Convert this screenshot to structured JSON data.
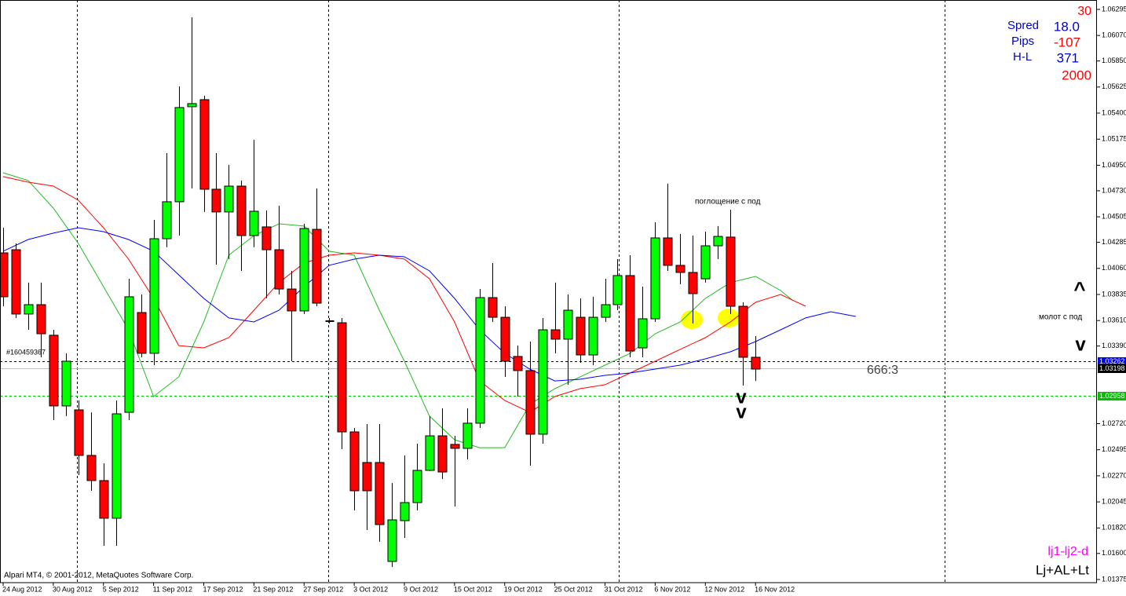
{
  "chart_data": {
    "type": "candlestick",
    "open": [
      1.04194,
      1.04221,
      1.03666,
      1.03747,
      1.03483,
      1.02873,
      1.02839,
      1.02446,
      1.02229,
      1.01904,
      1.02818,
      1.03679,
      1.03327,
      1.04316,
      1.04635,
      1.05455,
      1.05516,
      1.04743,
      1.04547,
      1.0477,
      1.04343,
      1.04418,
      1.04221,
      1.03882,
      1.03693,
      1.04397,
      1.03605,
      1.03591,
      1.02649,
      1.02385,
      1.02385,
      1.01531,
      1.01883,
      1.02039,
      1.02317,
      1.02615,
      1.02541,
      1.02507,
      1.02724,
      1.03808,
      1.03638,
      1.033,
      1.03178,
      1.02629,
      1.0353,
      1.03449,
      1.03638,
      1.03313,
      1.03638,
      1.03747,
      1.03998,
      1.03374,
      1.03625,
      1.04323,
      1.04086,
      1.04025,
      1.0397,
      1.04255,
      1.0433,
      1.03733,
      1.03293
    ],
    "high": [
      1.04411,
      1.04275,
      1.03937,
      1.03937,
      1.0353,
      1.03327,
      1.0292,
      1.02818,
      1.02378,
      1.0292,
      1.0397,
      1.03835,
      1.04479,
      1.05055,
      1.05631,
      1.06227,
      1.0555,
      1.05055,
      1.04953,
      1.04818,
      1.0517,
      1.0456,
      1.04601,
      1.04038,
      1.04445,
      1.0475,
      1.03632,
      1.03632,
      1.02683,
      1.02717,
      1.02717,
      1.02208,
      1.02446,
      1.02547,
      1.02785,
      1.02852,
      1.02615,
      1.02852,
      1.03882,
      1.04106,
      1.03733,
      1.03394,
      1.03428,
      1.03632,
      1.03937,
      1.03835,
      1.03801,
      1.03815,
      1.0397,
      1.0414,
      1.04174,
      1.03903,
      1.04458,
      1.04791,
      1.04357,
      1.04343,
      1.04377,
      1.04425,
      1.04567,
      1.03767,
      1.03476
    ],
    "low": [
      1.03733,
      1.03632,
      1.0353,
      1.03293,
      1.02751,
      1.02785,
      1.02276,
      1.02141,
      1.01666,
      1.01666,
      1.02751,
      1.03293,
      1.03225,
      1.04242,
      1.04343,
      1.0475,
      1.04547,
      1.04092,
      1.0414,
      1.04038,
      1.04242,
      1.03801,
      1.03835,
      1.03259,
      1.03666,
      1.03733,
      1.03584,
      1.025,
      1.01971,
      1.01802,
      1.017,
      1.01483,
      1.01734,
      1.01971,
      1.0231,
      1.02242,
      1.02005,
      1.02412,
      1.02683,
      1.03598,
      1.03123,
      1.02954,
      1.02358,
      1.02547,
      1.03327,
      1.03056,
      1.03245,
      1.03225,
      1.03598,
      1.03699,
      1.03293,
      1.03293,
      1.03598,
      1.04038,
      1.03923,
      1.03584,
      1.03937,
      1.0414,
      1.03666,
      1.03049,
      1.03089
    ],
    "close": [
      1.03815,
      1.03666,
      1.03747,
      1.03496,
      1.02873,
      1.03259,
      1.02446,
      1.02229,
      1.01904,
      1.02805,
      1.03815,
      1.03327,
      1.04316,
      1.04635,
      1.05448,
      1.05482,
      1.04743,
      1.04547,
      1.0477,
      1.04343,
      1.04553,
      1.04221,
      1.03882,
      1.03693,
      1.04404,
      1.0376,
      1.03605,
      1.02649,
      1.02141,
      1.02141,
      1.01849,
      1.0189,
      1.02039,
      1.02317,
      1.02615,
      1.02303,
      1.02507,
      1.02724,
      1.03808,
      1.03638,
      1.03259,
      1.03178,
      1.02629,
      1.0353,
      1.03449,
      1.03699,
      1.03313,
      1.03638,
      1.03747,
      1.03998,
      1.03347,
      1.03625,
      1.04323,
      1.04086,
      1.04025,
      1.03842,
      1.04255,
      1.04336,
      1.03733,
      1.03293,
      1.03191
    ],
    "up_color": "#00ff00",
    "down_color": "#ff0000",
    "indicators": [
      {
        "color": "#22bb22",
        "x": [
          0,
          2,
          4,
          6,
          8,
          10,
          12,
          14,
          16,
          18,
          20,
          22,
          24,
          26,
          28,
          30,
          32,
          34,
          36,
          38,
          40,
          42,
          44,
          46,
          48,
          50,
          52,
          54,
          56,
          58,
          60,
          62,
          63
        ],
        "values": [
          1.04885,
          1.04818,
          1.0458,
          1.04275,
          1.03903,
          1.0353,
          1.02954,
          1.03123,
          1.03598,
          1.04174,
          1.04343,
          1.04445,
          1.04425,
          1.04208,
          1.04174,
          1.03699,
          1.03259,
          1.02785,
          1.02581,
          1.02513,
          1.02513,
          1.02886,
          1.03022,
          1.03123,
          1.03225,
          1.03327,
          1.03496,
          1.03598,
          1.03801,
          1.03937,
          1.03991,
          1.03869,
          1.03781
        ]
      },
      {
        "color": "#ff0000",
        "x": [
          0,
          2,
          4,
          6,
          8,
          10,
          12,
          14,
          16,
          18,
          20,
          22,
          24,
          26,
          28,
          30,
          32,
          34,
          36,
          38,
          40,
          42,
          44,
          46,
          48,
          50,
          52,
          54,
          56,
          58,
          60,
          62,
          64
        ],
        "values": [
          1.04852,
          1.04804,
          1.0477,
          1.04648,
          1.04411,
          1.0414,
          1.03801,
          1.03394,
          1.03374,
          1.03462,
          1.03699,
          1.03937,
          1.04106,
          1.04174,
          1.04194,
          1.04174,
          1.0414,
          1.0397,
          1.03598,
          1.03089,
          1.0292,
          1.02818,
          1.02954,
          1.03022,
          1.03056,
          1.03157,
          1.03259,
          1.03361,
          1.03462,
          1.03598,
          1.03767,
          1.03835,
          1.03733
        ]
      },
      {
        "color": "#0000ff",
        "x": [
          0,
          2,
          4,
          6,
          8,
          10,
          12,
          14,
          16,
          18,
          20,
          22,
          24,
          26,
          28,
          30,
          32,
          34,
          36,
          38,
          40,
          42,
          44,
          46,
          48,
          50,
          52,
          54,
          56,
          58,
          60,
          62,
          64,
          66,
          68
        ],
        "values": [
          1.04208,
          1.04309,
          1.04364,
          1.04411,
          1.04377,
          1.04309,
          1.04208,
          1.04004,
          1.03801,
          1.03632,
          1.03598,
          1.03699,
          1.03903,
          1.04086,
          1.0414,
          1.04174,
          1.0416,
          1.04038,
          1.03801,
          1.0353,
          1.03327,
          1.03191,
          1.03089,
          1.03103,
          1.03137,
          1.03157,
          1.03191,
          1.03225,
          1.03279,
          1.0334,
          1.03428,
          1.0353,
          1.03632,
          1.03686,
          1.03645
        ]
      }
    ],
    "levels": [
      {
        "value": 1.03262,
        "color": "#000000",
        "dashed": true,
        "box_color": "#0000ff"
      },
      {
        "value": 1.03198,
        "color": "#c0c0c0",
        "dashed": false,
        "box_color": "#000000"
      },
      {
        "value": 1.02958,
        "color": "#00c000",
        "dashed": true,
        "box_color": "#00c000"
      }
    ],
    "xlim": [
      -0.25,
      87.23
    ],
    "xticks": [
      {
        "value": 0,
        "label": "24 Aug 2012"
      },
      {
        "value": 4,
        "label": "30 Aug 2012"
      },
      {
        "value": 8,
        "label": "5 Sep 2012"
      },
      {
        "value": 12,
        "label": "11 Sep 2012"
      },
      {
        "value": 16,
        "label": "17 Sep 2012"
      },
      {
        "value": 20,
        "label": "21 Sep 2012"
      },
      {
        "value": 24,
        "label": "27 Sep 2012"
      },
      {
        "value": 28,
        "label": "3 Oct 2012"
      },
      {
        "value": 32,
        "label": "9 Oct 2012"
      },
      {
        "value": 36,
        "label": "15 Oct 2012"
      },
      {
        "value": 40,
        "label": "19 Oct 2012"
      },
      {
        "value": 44,
        "label": "25 Oct 2012"
      },
      {
        "value": 48,
        "label": "31 Oct 2012"
      },
      {
        "value": 52,
        "label": "6 Nov 2012"
      },
      {
        "value": 56,
        "label": "12 Nov 2012"
      },
      {
        "value": 60,
        "label": "16 Nov 2012"
      }
    ],
    "ylim": [
      1.01348,
      1.06376
    ],
    "yticks": [
      1.06295,
      {
        "value": 1.0607,
        "label": "1.06070"
      },
      {
        "value": 1.0585,
        "label": "1.05850"
      },
      1.05625,
      {
        "value": 1.054,
        "label": "1.05400"
      },
      1.05175,
      {
        "value": 1.0495,
        "label": "1.04950"
      },
      {
        "value": 1.0473,
        "label": "1.04730"
      },
      1.04505,
      1.04285,
      {
        "value": 1.0406,
        "label": "1.04060"
      },
      1.03835,
      {
        "value": 1.0361,
        "label": "1.03610"
      },
      {
        "value": 1.0339,
        "label": "1.03390"
      },
      {
        "value": 1.0272,
        "label": "1.02720"
      },
      1.02495,
      {
        "value": 1.0227,
        "label": "1.02270"
      },
      1.02045,
      {
        "value": 1.0182,
        "label": "1.01820"
      },
      {
        "value": 1.016,
        "label": "1.01600"
      },
      1.01375
    ],
    "info": {
      "top": "30",
      "spread_label": "Spred",
      "spread": "18.0",
      "pips_label": "Pips",
      "pips": "-107",
      "hl_label": "H-L",
      "hl": "371",
      "bottom": "2000"
    },
    "annotations": {
      "engulfing": "поглощение с под",
      "hammer": "молот с под",
      "up_arrow": "^",
      "down_arrow": "v",
      "down_arrow_2": "v",
      "down_arrow_3": "v",
      "ratio": "666:3",
      "order": "#160459367",
      "copyright": "Alpari MT4, © 2001-2012, MetaQuotes Software Corp.",
      "legend_1": "lj1-lj2-d",
      "legend_2": "Lj+AL+Lt"
    }
  }
}
